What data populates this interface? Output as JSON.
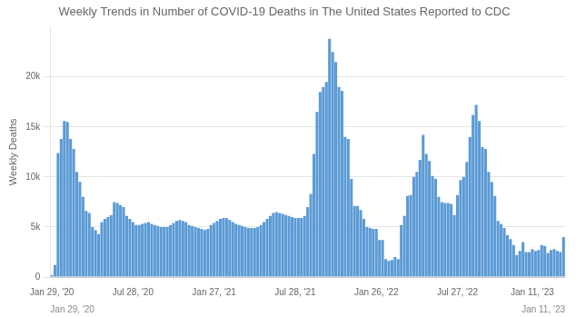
{
  "chart_data": {
    "type": "bar",
    "title": "Weekly Trends in Number of COVID-19 Deaths in The United States Reported to CDC",
    "y_label": "Weekly Deaths",
    "color": "#5b9bd5",
    "grid": true,
    "ylim": [
      0,
      25000
    ],
    "yticks": [
      0,
      {
        "value": 5000,
        "label": "5k"
      },
      {
        "value": 10000,
        "label": "10k"
      },
      {
        "value": 15000,
        "label": "15k"
      },
      {
        "value": 20000,
        "label": "20k"
      }
    ],
    "annotations": [
      "Jan 29, '20",
      "Jan 11, '23"
    ],
    "categories": [
      "Jan 29, '20",
      null,
      null,
      null,
      null,
      null,
      null,
      null,
      null,
      null,
      null,
      null,
      null,
      null,
      null,
      null,
      null,
      null,
      null,
      null,
      null,
      null,
      null,
      null,
      null,
      null,
      "Jul 28, '20",
      null,
      null,
      null,
      null,
      null,
      null,
      null,
      null,
      null,
      null,
      null,
      null,
      null,
      null,
      null,
      null,
      null,
      null,
      null,
      null,
      null,
      null,
      null,
      null,
      null,
      "Jan 27, '21",
      null,
      null,
      null,
      null,
      null,
      null,
      null,
      null,
      null,
      null,
      null,
      null,
      null,
      null,
      null,
      null,
      null,
      null,
      null,
      null,
      null,
      null,
      null,
      null,
      null,
      "Jul 28, '21",
      null,
      null,
      null,
      null,
      null,
      null,
      null,
      null,
      null,
      null,
      null,
      null,
      null,
      null,
      null,
      null,
      null,
      null,
      null,
      null,
      null,
      null,
      null,
      null,
      null,
      "Jan 26, '22",
      null,
      null,
      null,
      null,
      null,
      null,
      null,
      null,
      null,
      null,
      null,
      null,
      null,
      null,
      null,
      null,
      null,
      null,
      null,
      null,
      null,
      null,
      null,
      null,
      null,
      "Jul 27, '22",
      null,
      null,
      null,
      null,
      null,
      null,
      null,
      null,
      null,
      null,
      null,
      null,
      null,
      null,
      null,
      null,
      null,
      null,
      null,
      null,
      null,
      null,
      null,
      "Jan 11, '23",
      null,
      null,
      null,
      null,
      null,
      null,
      null,
      null,
      null,
      null
    ],
    "values": [
      200,
      1200,
      12400,
      13800,
      15600,
      15500,
      13800,
      12800,
      10500,
      9500,
      8000,
      6600,
      6400,
      5000,
      4700,
      4300,
      5500,
      5800,
      6000,
      6200,
      7500,
      7400,
      7200,
      7000,
      6100,
      5800,
      5500,
      5200,
      5200,
      5300,
      5400,
      5500,
      5300,
      5200,
      5100,
      5000,
      5000,
      5000,
      5200,
      5400,
      5600,
      5700,
      5600,
      5500,
      5200,
      5100,
      5000,
      4900,
      4800,
      4700,
      4800,
      5200,
      5400,
      5600,
      5800,
      5900,
      5900,
      5700,
      5500,
      5300,
      5200,
      5100,
      5000,
      4900,
      4900,
      4900,
      5000,
      5200,
      5500,
      5800,
      6100,
      6400,
      6500,
      6400,
      6300,
      6200,
      6100,
      6000,
      5900,
      5900,
      5900,
      6100,
      7000,
      8300,
      12300,
      16500,
      18500,
      19000,
      19500,
      23800,
      22500,
      21500,
      19000,
      18600,
      14000,
      13800,
      9800,
      7100,
      7100,
      6700,
      5800,
      5000,
      4900,
      4800,
      4800,
      3700,
      3700,
      1800,
      1600,
      1700,
      2000,
      1800,
      5200,
      6100,
      8100,
      8200,
      10000,
      10500,
      11700,
      14200,
      12300,
      11600,
      10100,
      9800,
      8000,
      7500,
      7400,
      7400,
      7300,
      6200,
      8200,
      9700,
      10000,
      11500,
      14000,
      16200,
      17200,
      15600,
      13000,
      12800,
      10500,
      9500,
      8100,
      5600,
      5300,
      4900,
      4200,
      3800,
      3200,
      2200,
      2600,
      3500,
      2500,
      2500,
      2800,
      2600,
      2700,
      3200,
      3100,
      2400,
      2700,
      2800,
      2600,
      2500,
      4000
    ]
  }
}
